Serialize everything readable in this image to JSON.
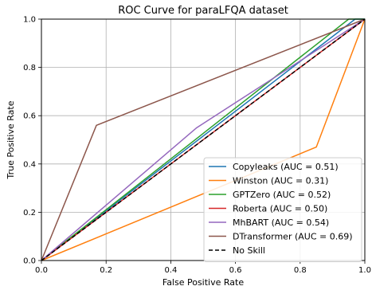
{
  "chart_data": {
    "type": "line",
    "title": "ROC Curve for paraLFQA dataset",
    "xlabel": "False Positive Rate",
    "ylabel": "True Positive Rate",
    "xlim": [
      0.0,
      1.0
    ],
    "ylim": [
      0.0,
      1.0
    ],
    "x_ticks": [
      "0.0",
      "0.2",
      "0.4",
      "0.6",
      "0.8",
      "1.0"
    ],
    "y_ticks": [
      "0.0",
      "0.2",
      "0.4",
      "0.6",
      "0.8",
      "1.0"
    ],
    "grid": true,
    "legend_position": "bottom-right",
    "series": [
      {
        "name": "Copyleaks (AUC = 0.51)",
        "color": "#1f77b4",
        "dash": "solid",
        "points": [
          [
            0,
            0
          ],
          [
            0.97,
            1.0
          ],
          [
            1.0,
            1.0
          ]
        ]
      },
      {
        "name": "Winston (AUC = 0.31)",
        "color": "#ff7f0e",
        "dash": "solid",
        "points": [
          [
            0,
            0
          ],
          [
            0.85,
            0.47
          ],
          [
            1.0,
            1.0
          ]
        ]
      },
      {
        "name": "GPTZero (AUC = 0.52)",
        "color": "#2ca02c",
        "dash": "solid",
        "points": [
          [
            0,
            0
          ],
          [
            0.95,
            1.0
          ],
          [
            1.0,
            1.0
          ]
        ]
      },
      {
        "name": "Roberta (AUC = 0.50)",
        "color": "#d62728",
        "dash": "solid",
        "points": [
          [
            0,
            0
          ],
          [
            1.0,
            1.0
          ]
        ]
      },
      {
        "name": "MhBART (AUC = 0.54)",
        "color": "#9467bd",
        "dash": "solid",
        "points": [
          [
            0,
            0
          ],
          [
            0.48,
            0.55
          ],
          [
            1.0,
            1.0
          ]
        ]
      },
      {
        "name": "DTransformer (AUC = 0.69)",
        "color": "#8c564b",
        "dash": "solid",
        "points": [
          [
            0,
            0
          ],
          [
            0.17,
            0.56
          ],
          [
            1.0,
            1.0
          ]
        ]
      },
      {
        "name": "No Skill",
        "color": "#000000",
        "dash": "dashed",
        "points": [
          [
            0,
            0
          ],
          [
            1.0,
            1.0
          ]
        ]
      }
    ]
  }
}
